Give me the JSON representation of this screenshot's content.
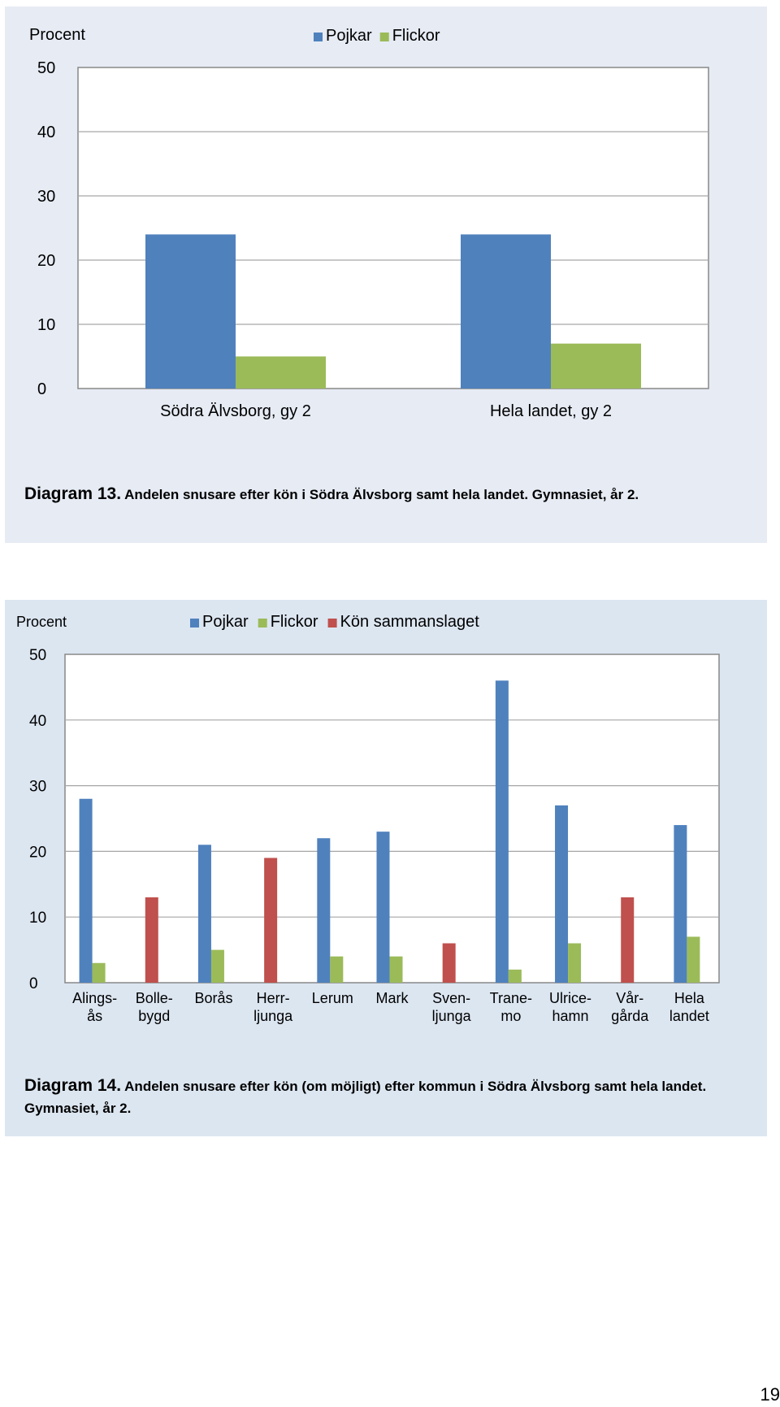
{
  "chart_data": [
    {
      "type": "bar",
      "ylabel": "Procent",
      "ylim": [
        0,
        50
      ],
      "yticks": [
        "50",
        "40",
        "30",
        "20",
        "10",
        "0"
      ],
      "ytick_values": [
        50,
        40,
        30,
        20,
        10,
        0
      ],
      "grid": true,
      "legend_position": "top-center",
      "categories": [
        [
          "Södra Älvsborg, gy 2"
        ],
        [
          "Hela landet, gy 2"
        ]
      ],
      "series": [
        {
          "name": "Pojkar",
          "color": "#4f81bd",
          "values": [
            24,
            24
          ]
        },
        {
          "name": "Flickor",
          "color": "#9bbb59",
          "values": [
            5,
            7
          ]
        }
      ],
      "caption": {
        "number": "Diagram 13.",
        "text": "Andelen snusare efter kön i Södra Älvsborg samt hela landet. Gymnasiet, år 2."
      }
    },
    {
      "type": "bar",
      "ylabel": "Procent",
      "ylim": [
        0,
        50
      ],
      "yticks": [
        "50",
        "40",
        "30",
        "20",
        "10",
        "0"
      ],
      "ytick_values": [
        50,
        40,
        30,
        20,
        10,
        0
      ],
      "grid": true,
      "legend_position": "top-center",
      "categories": [
        [
          "Alings-",
          "ås"
        ],
        [
          "Bolle-",
          "bygd"
        ],
        [
          "Borås"
        ],
        [
          "Herr-",
          "ljunga"
        ],
        [
          "Lerum"
        ],
        [
          "Mark"
        ],
        [
          "Sven-",
          "ljunga"
        ],
        [
          "Trane-",
          "mo"
        ],
        [
          "Ulrice-",
          "hamn"
        ],
        [
          "Vår-",
          "gårda"
        ],
        [
          "Hela",
          "landet"
        ]
      ],
      "series": [
        {
          "name": "Pojkar",
          "color": "#4f81bd",
          "values": [
            28,
            null,
            21,
            null,
            22,
            23,
            null,
            46,
            27,
            null,
            24
          ]
        },
        {
          "name": "Flickor",
          "color": "#9bbb59",
          "values": [
            3,
            null,
            5,
            null,
            4,
            4,
            null,
            2,
            6,
            null,
            7
          ]
        },
        {
          "name": "Kön sammanslaget",
          "color": "#c0504d",
          "values": [
            null,
            13,
            null,
            19,
            null,
            null,
            6,
            null,
            null,
            13,
            null
          ]
        }
      ],
      "caption": {
        "number": "Diagram 14.",
        "text": "Andelen snusare efter kön (om möjligt) efter kommun i Södra Älvsborg samt hela landet. Gymnasiet, år 2."
      }
    }
  ],
  "page_number": "19"
}
